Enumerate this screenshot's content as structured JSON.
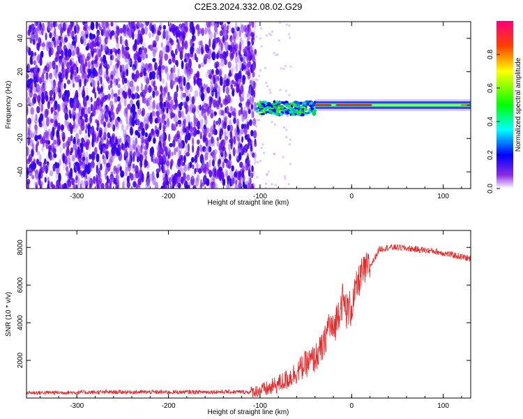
{
  "title": "C2E3.2024.332.08.02.G29",
  "chart_data": [
    {
      "type": "heatmap",
      "xlabel": "Height of straight line (km)",
      "ylabel": "Frequency (Hz)",
      "xlim": [
        -355,
        130
      ],
      "ylim": [
        -50,
        50
      ],
      "xticks": [
        -300,
        -200,
        -100,
        0,
        100
      ],
      "yticks": [
        -40,
        -20,
        0,
        20,
        40
      ],
      "colorbar": {
        "label": "Normalized spectral amplitude",
        "range": [
          0.0,
          1.0
        ],
        "ticks": [
          0.0,
          0.2,
          0.4,
          0.6,
          0.8
        ],
        "colors": [
          "#ffffff",
          "#7a00ff",
          "#0000ff",
          "#00ffff",
          "#00ff00",
          "#ffff00",
          "#ff8000",
          "#ff0000",
          "#ff0080"
        ]
      },
      "regions": [
        {
          "name": "noise",
          "x_range": [
            -355,
            -105
          ],
          "y_range": [
            -50,
            50
          ],
          "amplitude": [
            0.0,
            0.3
          ]
        },
        {
          "name": "transition",
          "x_range": [
            -105,
            -40
          ],
          "center_freq": -2,
          "bandwidth": 8,
          "amplitude": [
            0.3,
            0.7
          ]
        },
        {
          "name": "signal",
          "x_range": [
            -40,
            130
          ],
          "center_freq": 0,
          "bandwidth": 4,
          "amplitude": [
            0.5,
            1.0
          ]
        }
      ]
    },
    {
      "type": "line",
      "xlabel": "Height of straight line (km)",
      "ylabel": "SNR (10 * v/v)",
      "xlim": [
        -355,
        130
      ],
      "ylim": [
        0,
        8900
      ],
      "xticks": [
        -300,
        -200,
        -100,
        0,
        100
      ],
      "yticks": [
        2000,
        4000,
        6000,
        8000
      ],
      "color": "#ee2222",
      "series": [
        {
          "name": "SNR",
          "x": [
            -355,
            -300,
            -250,
            -200,
            -150,
            -110,
            -90,
            -70,
            -60,
            -50,
            -40,
            -30,
            -25,
            -20,
            -15,
            -10,
            -5,
            0,
            5,
            10,
            15,
            20,
            25,
            30,
            40,
            50,
            70,
            90,
            110,
            130
          ],
          "values": [
            280,
            300,
            320,
            310,
            330,
            320,
            500,
            1000,
            1400,
            1800,
            2100,
            2800,
            4000,
            3500,
            4500,
            5200,
            4600,
            4800,
            5800,
            6500,
            6800,
            7000,
            7400,
            7900,
            8000,
            8000,
            7900,
            7800,
            7600,
            7400
          ]
        }
      ]
    }
  ]
}
